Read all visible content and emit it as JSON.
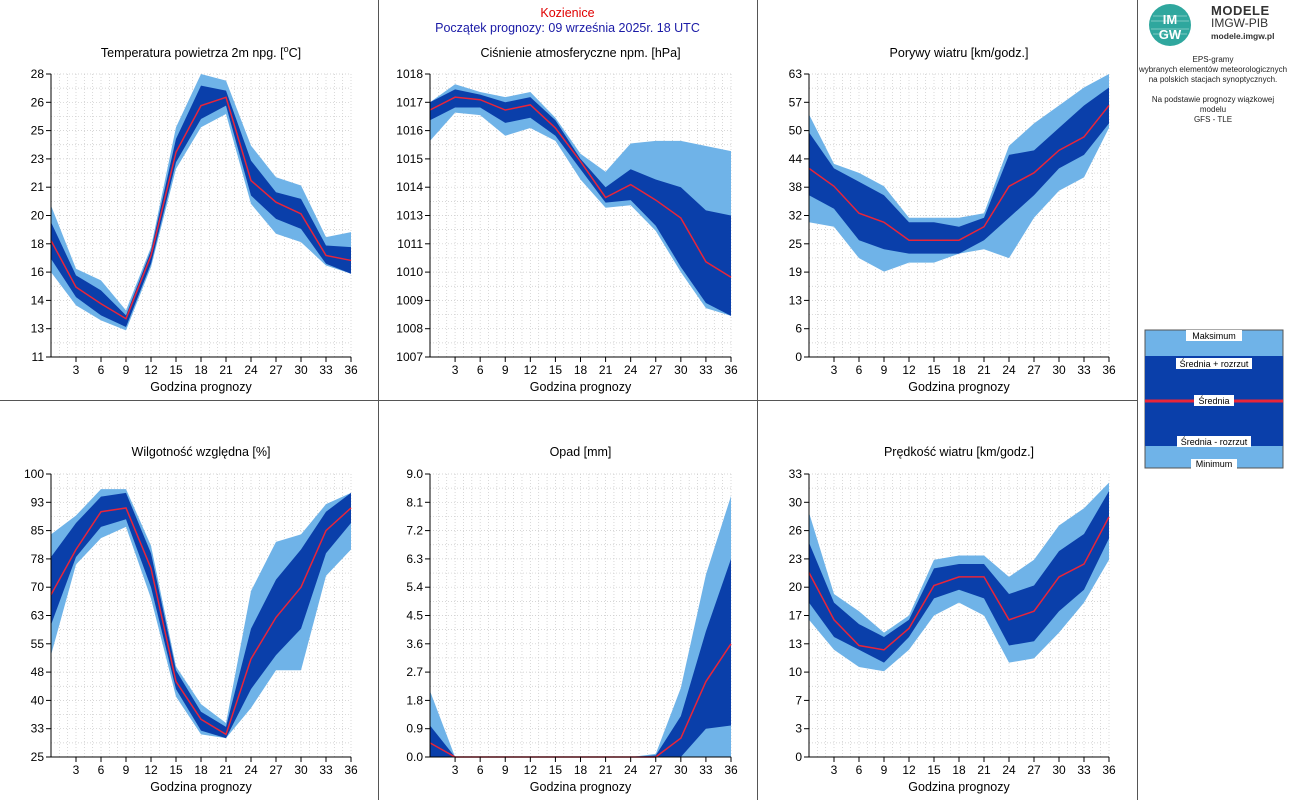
{
  "header": {
    "station": "Kozienice",
    "forecast_start": "Początek prognozy: 09 września 2025r. 18 UTC"
  },
  "logo": {
    "mark_top": "IM",
    "mark_bottom": "GW",
    "title": "MODELE",
    "subtitle": "IMGW-PIB",
    "url": "modele.imgw.pl"
  },
  "info": {
    "line1": "EPS-gramy",
    "line2": "wybranych elementów meteorologicznych",
    "line3": "na polskich stacjach  synoptycznych.",
    "line4": "Na podstawie prognozy wiązkowej modelu",
    "line5": "GFS - TLE"
  },
  "legend": {
    "max": "Maksimum",
    "mean_plus": "Średnia + rozrzut",
    "mean": "Średnia",
    "mean_minus": "Średnia - rozrzut",
    "min": "Minimum"
  },
  "colors": {
    "outer_band": "#6fb3e8",
    "inner_band": "#0a3faa",
    "mean_line": "#e8253a",
    "grid": "#c8c8c8",
    "header_station": "#e00000",
    "header_start": "#1a1aa6"
  },
  "chart_data": [
    {
      "id": "temp",
      "type": "area",
      "title_pre": "Temperatura powietrza 2m npg. [",
      "title_sup": "o",
      "title_post": "C]",
      "xlabel": "Godzina prognozy",
      "x": [
        0,
        3,
        6,
        9,
        12,
        15,
        18,
        21,
        24,
        27,
        30,
        33,
        36
      ],
      "xticks": [
        "3",
        "6",
        "9",
        "12",
        "15",
        "18",
        "21",
        "24",
        "27",
        "30",
        "33",
        "36"
      ],
      "ylim": [
        11,
        28
      ],
      "yticks": [
        "11",
        "13",
        "14",
        "16",
        "18",
        "20",
        "21",
        "23",
        "25",
        "26",
        "28"
      ],
      "series": {
        "max": [
          20.1,
          16.3,
          15.6,
          13.8,
          17.6,
          24.8,
          28.0,
          27.6,
          23.7,
          21.8,
          21.3,
          18.2,
          18.5
        ],
        "mean_plus": [
          19.1,
          15.9,
          15.0,
          13.5,
          17.4,
          24.1,
          27.3,
          27.0,
          22.8,
          20.9,
          20.5,
          17.7,
          17.6
        ],
        "mean": [
          18.0,
          15.2,
          14.2,
          13.3,
          17.1,
          23.3,
          26.1,
          26.6,
          21.6,
          20.3,
          19.6,
          17.1,
          16.8
        ],
        "mean_minus": [
          16.9,
          14.6,
          13.5,
          12.8,
          16.6,
          22.7,
          25.3,
          26.1,
          20.7,
          19.3,
          18.7,
          16.6,
          16.0
        ],
        "min": [
          16.1,
          14.1,
          13.2,
          12.6,
          16.4,
          22.3,
          24.8,
          25.6,
          20.2,
          18.4,
          17.9,
          16.5,
          16.0
        ]
      }
    },
    {
      "id": "press",
      "type": "area",
      "title": "Ciśnienie atmosferyczne npm. [hPa]",
      "xlabel": "Godzina prognozy",
      "x": [
        0,
        3,
        6,
        9,
        12,
        15,
        18,
        21,
        24,
        27,
        30,
        33,
        36
      ],
      "xticks": [
        "3",
        "6",
        "9",
        "12",
        "15",
        "18",
        "21",
        "24",
        "27",
        "30",
        "33",
        "36"
      ],
      "ylim": [
        1007,
        1018
      ],
      "yticks": [
        "1007",
        "1008",
        "1009",
        "1010",
        "1011",
        "1013",
        "1014",
        "1015",
        "1016",
        "1017",
        "1018"
      ],
      "series": {
        "max": [
          1016.9,
          1017.6,
          1017.3,
          1017.1,
          1017.3,
          1016.3,
          1014.9,
          1014.2,
          1015.3,
          1015.4,
          1015.4,
          1015.2,
          1015.0
        ],
        "mean_plus": [
          1016.9,
          1017.4,
          1017.2,
          1016.9,
          1017.1,
          1016.2,
          1014.7,
          1013.6,
          1014.3,
          1013.9,
          1013.6,
          1012.7,
          1012.5
        ],
        "mean": [
          1016.6,
          1017.1,
          1017.0,
          1016.6,
          1016.8,
          1015.9,
          1014.6,
          1013.2,
          1013.7,
          1013.1,
          1012.4,
          1010.7,
          1010.1
        ],
        "mean_minus": [
          1016.2,
          1016.7,
          1016.7,
          1016.1,
          1016.3,
          1015.6,
          1014.3,
          1013.0,
          1013.1,
          1012.1,
          1010.5,
          1009.1,
          1008.6
        ],
        "min": [
          1015.4,
          1016.5,
          1016.4,
          1015.6,
          1015.9,
          1015.4,
          1013.9,
          1012.8,
          1012.9,
          1011.9,
          1010.3,
          1008.9,
          1008.6
        ]
      }
    },
    {
      "id": "gust",
      "type": "area",
      "title": "Porywy wiatru [km/godz.]",
      "xlabel": "Godzina prognozy",
      "x": [
        0,
        3,
        6,
        9,
        12,
        15,
        18,
        21,
        24,
        27,
        30,
        33,
        36
      ],
      "xticks": [
        "3",
        "6",
        "9",
        "12",
        "15",
        "18",
        "21",
        "24",
        "27",
        "30",
        "33",
        "36"
      ],
      "ylim": [
        0,
        63
      ],
      "yticks": [
        "0",
        "6",
        "13",
        "19",
        "25",
        "32",
        "38",
        "44",
        "50",
        "57",
        "63"
      ],
      "series": {
        "max": [
          54,
          43,
          41,
          38,
          31,
          31,
          31,
          32,
          47,
          52,
          56,
          60,
          63
        ],
        "mean_plus": [
          50,
          42,
          39,
          36,
          30,
          30,
          29,
          31,
          45,
          46,
          51,
          56,
          60
        ],
        "mean": [
          42,
          38,
          32,
          30,
          26,
          26,
          26,
          29,
          38,
          41,
          46,
          49,
          56
        ],
        "mean_minus": [
          36,
          33,
          26,
          24,
          23,
          23,
          23,
          26,
          31,
          36,
          42,
          45,
          52
        ],
        "min": [
          30,
          29,
          22,
          19,
          21,
          21,
          23,
          24,
          22,
          31,
          37,
          40,
          51
        ]
      }
    },
    {
      "id": "rh",
      "type": "area",
      "title": "Wilgotność względna [%]",
      "xlabel": "Godzina prognozy",
      "x": [
        0,
        3,
        6,
        9,
        12,
        15,
        18,
        21,
        24,
        27,
        30,
        33,
        36
      ],
      "xticks": [
        "3",
        "6",
        "9",
        "12",
        "15",
        "18",
        "21",
        "24",
        "27",
        "30",
        "33",
        "36"
      ],
      "ylim": [
        25,
        100
      ],
      "yticks": [
        "25",
        "33",
        "40",
        "48",
        "55",
        "63",
        "70",
        "78",
        "85",
        "93",
        "100"
      ],
      "series": {
        "max": [
          84,
          89,
          96,
          96,
          81,
          49,
          39,
          34,
          69,
          82,
          84,
          92,
          95
        ],
        "mean_plus": [
          78,
          87,
          94,
          95,
          79,
          48,
          37,
          33,
          59,
          72,
          80,
          90,
          95
        ],
        "mean": [
          68,
          80,
          90,
          91,
          75,
          45,
          35,
          31,
          51,
          62,
          70,
          85,
          91
        ],
        "mean_minus": [
          60,
          78,
          86,
          88,
          70,
          43,
          32,
          30,
          43,
          52,
          59,
          79,
          87
        ],
        "min": [
          52,
          76,
          83,
          86,
          67,
          41,
          31,
          30,
          38,
          48,
          48,
          73,
          80
        ]
      }
    },
    {
      "id": "precip",
      "type": "area",
      "title": "Opad [mm]",
      "xlabel": "Godzina prognozy",
      "x": [
        0,
        3,
        6,
        9,
        12,
        15,
        18,
        21,
        24,
        27,
        30,
        33,
        36
      ],
      "xticks": [
        "3",
        "6",
        "9",
        "12",
        "15",
        "18",
        "21",
        "24",
        "27",
        "30",
        "33",
        "36"
      ],
      "ylim": [
        0,
        9
      ],
      "yticks": [
        "0.0",
        "0.9",
        "1.8",
        "2.7",
        "3.6",
        "4.5",
        "5.4",
        "6.3",
        "7.2",
        "8.1",
        "9.0"
      ],
      "series": {
        "max": [
          2.1,
          0,
          0,
          0,
          0,
          0,
          0,
          0,
          0,
          0.1,
          2.2,
          5.8,
          8.3
        ],
        "mean_plus": [
          1.0,
          0,
          0,
          0,
          0,
          0,
          0,
          0,
          0,
          0.05,
          1.3,
          4.0,
          6.3
        ],
        "mean": [
          0.45,
          0,
          0,
          0,
          0,
          0,
          0,
          0,
          0,
          0,
          0.6,
          2.4,
          3.6
        ],
        "mean_minus": [
          0,
          0,
          0,
          0,
          0,
          0,
          0,
          0,
          0,
          0,
          0,
          0.9,
          1.0
        ],
        "min": [
          0,
          0,
          0,
          0,
          0,
          0,
          0,
          0,
          0,
          0,
          0,
          0,
          0
        ]
      }
    },
    {
      "id": "wind",
      "type": "area",
      "title": "Prędkość wiatru [km/godz.]",
      "xlabel": "Godzina prognozy",
      "x": [
        0,
        3,
        6,
        9,
        12,
        15,
        18,
        21,
        24,
        27,
        30,
        33,
        36
      ],
      "xticks": [
        "3",
        "6",
        "9",
        "12",
        "15",
        "18",
        "21",
        "24",
        "27",
        "30",
        "33",
        "36"
      ],
      "ylim": [
        0,
        33
      ],
      "yticks": [
        "0",
        "3",
        "7",
        "10",
        "13",
        "17",
        "20",
        "23",
        "26",
        "30",
        "33"
      ],
      "series": {
        "max": [
          28.5,
          19,
          17,
          14.5,
          16.5,
          23,
          23.5,
          23.5,
          21,
          23,
          27,
          29,
          32
        ],
        "mean_plus": [
          25,
          18,
          15.5,
          14,
          16,
          22,
          22.5,
          22.5,
          19,
          20,
          24,
          26,
          31
        ],
        "mean": [
          21.5,
          16,
          13,
          12.5,
          15,
          20,
          21,
          21,
          16,
          17,
          21,
          22.5,
          28
        ],
        "mean_minus": [
          18,
          14,
          12.5,
          11,
          14,
          18.5,
          19.5,
          18.5,
          13,
          13.5,
          17,
          19.5,
          25.5
        ],
        "min": [
          16,
          12.5,
          10.5,
          10,
          12.5,
          16.5,
          18,
          16.5,
          11,
          11.5,
          14.5,
          18,
          23
        ]
      }
    }
  ]
}
